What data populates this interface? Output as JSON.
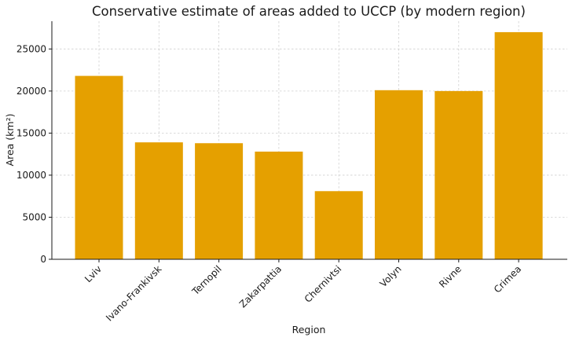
{
  "chart_data": {
    "type": "bar",
    "title": "Conservative estimate of areas added to UCCP (by modern region)",
    "xlabel": "Region",
    "ylabel": "Area (km²)",
    "categories": [
      "Lviv",
      "Ivano-Frankivsk",
      "Ternopil",
      "Zakarpattia",
      "Chernivtsi",
      "Volyn",
      "Rivne",
      "Crimea"
    ],
    "values": [
      21800,
      13900,
      13800,
      12800,
      8100,
      20100,
      20000,
      27000
    ],
    "ylim": [
      0,
      28300
    ],
    "yticks": [
      0,
      5000,
      10000,
      15000,
      20000,
      25000
    ],
    "grid": true,
    "bar_color": "#E5A000"
  }
}
